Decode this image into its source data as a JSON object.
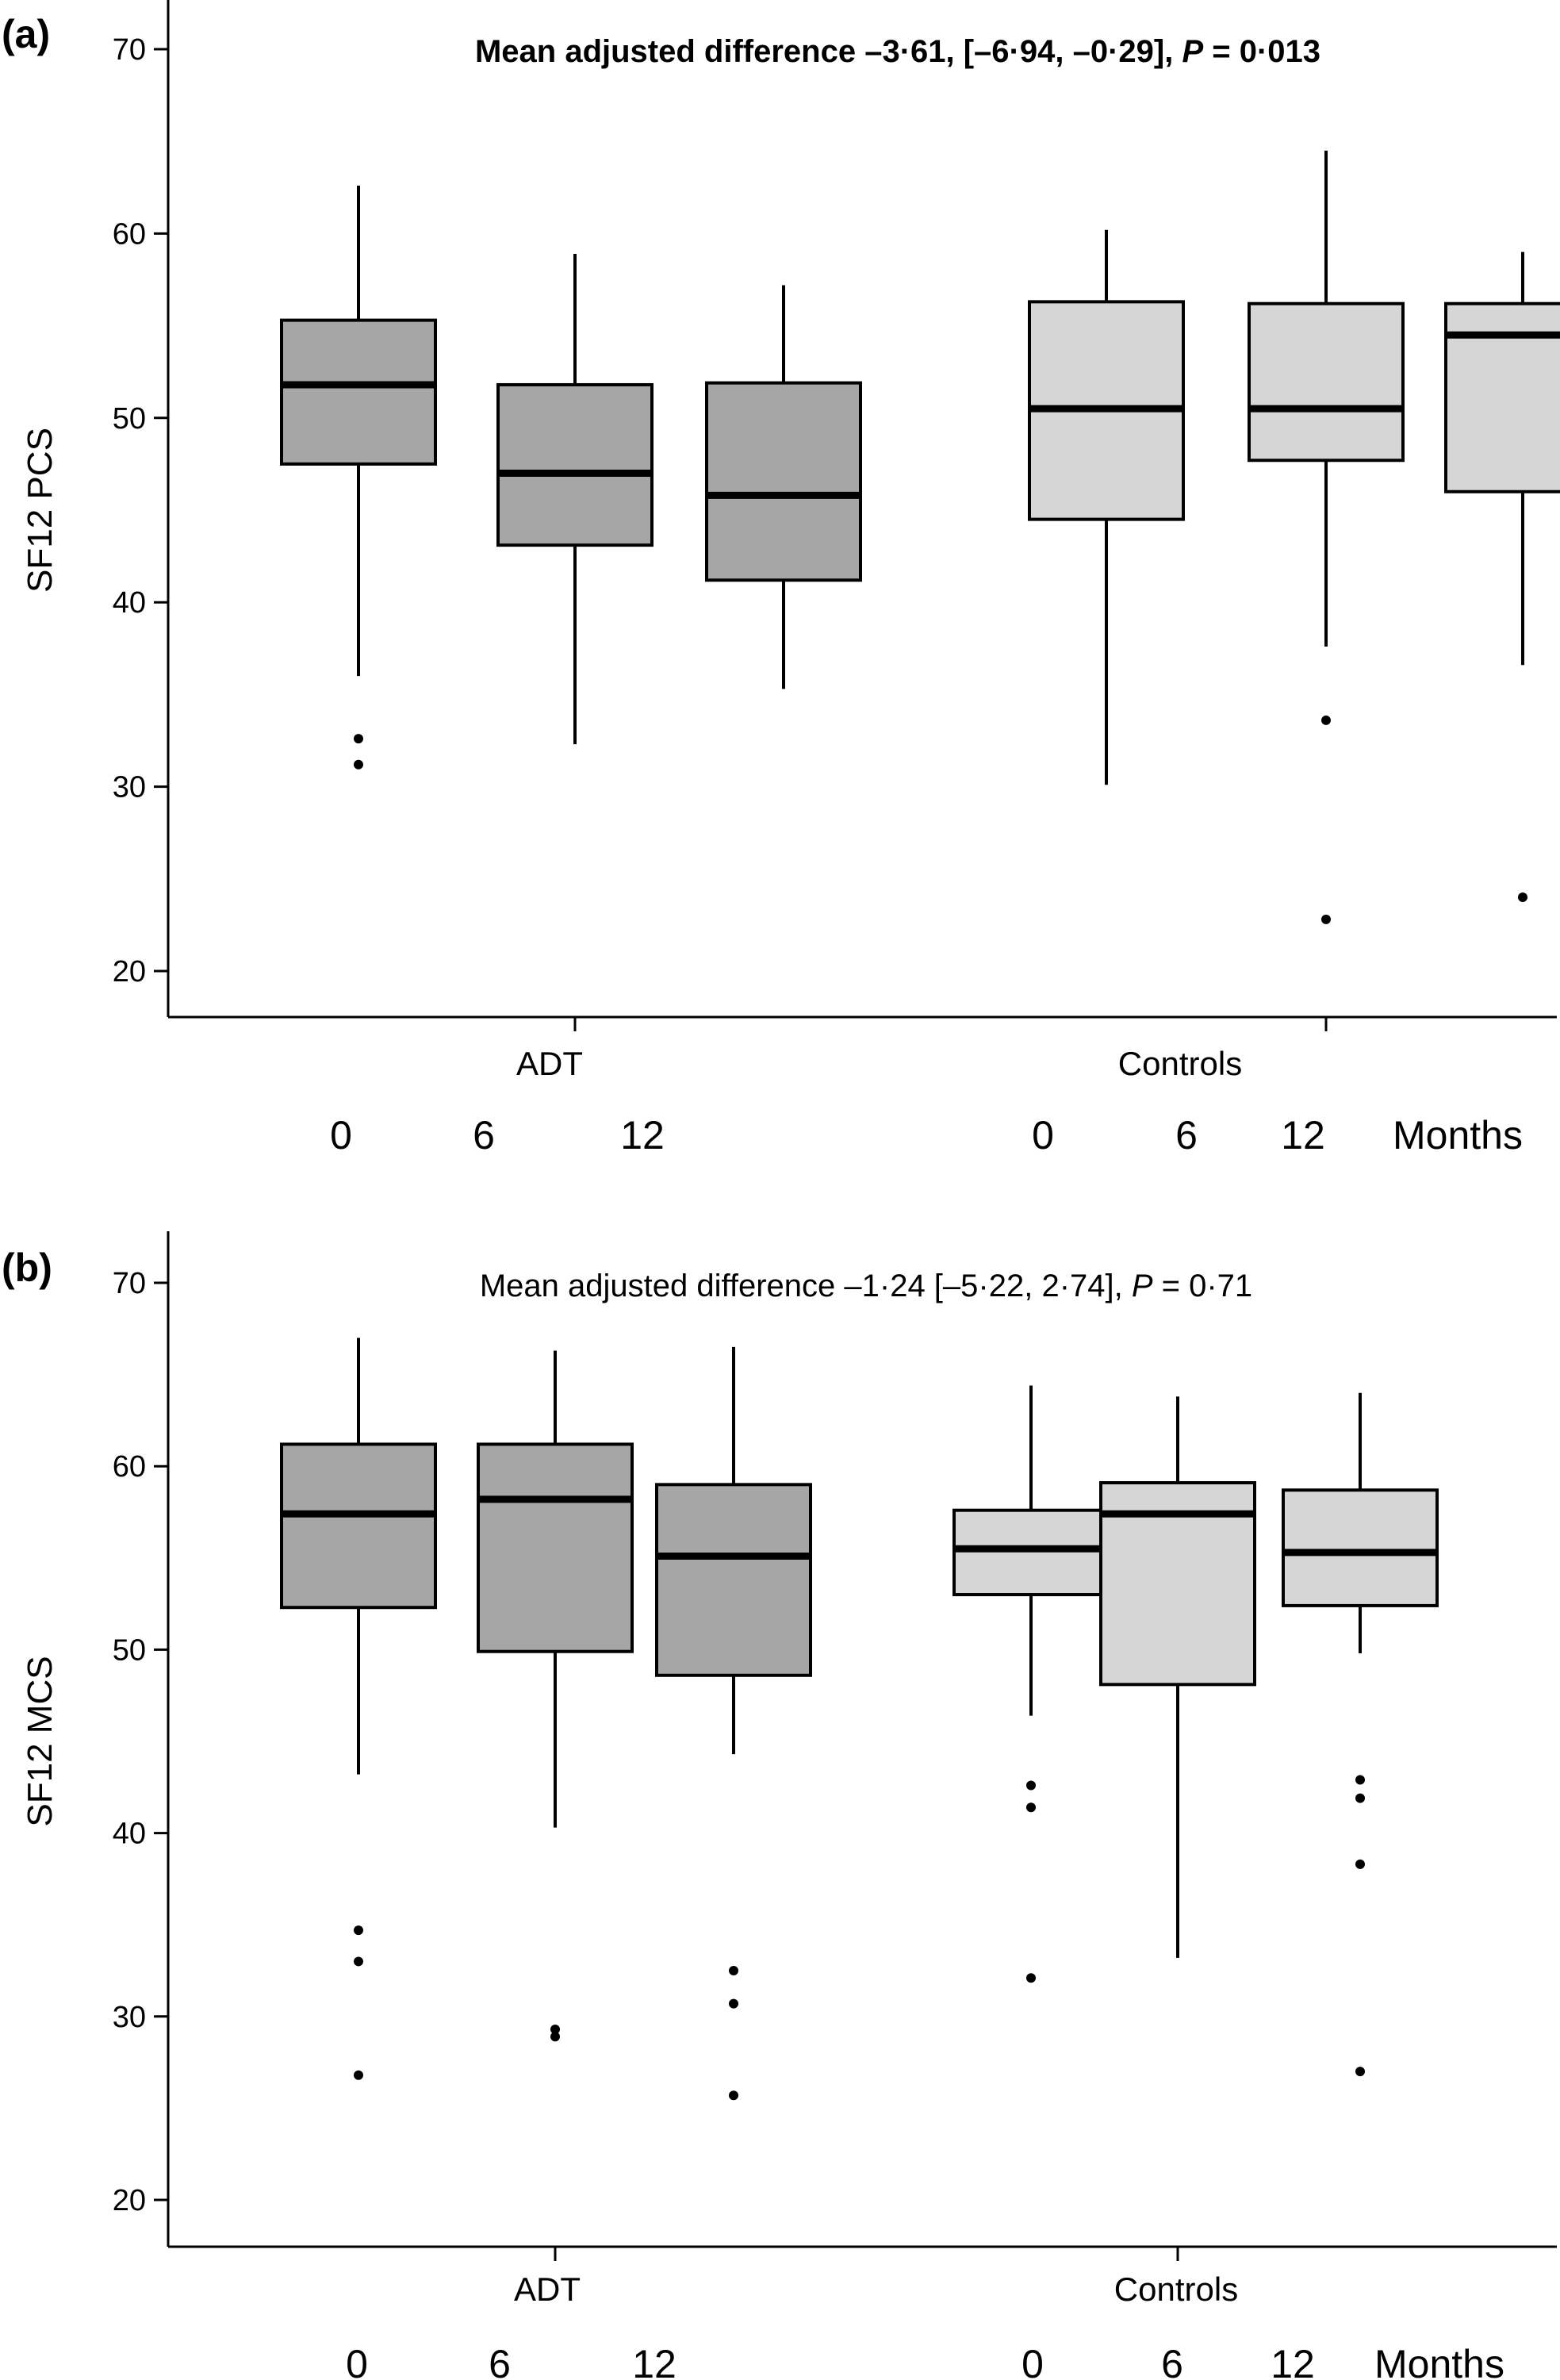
{
  "colors": {
    "adt": "#a6a6a6",
    "controls": "#d6d6d6",
    "stroke": "#000000"
  },
  "chart_data": [
    {
      "type": "boxplot",
      "panel_label": "(a)",
      "title_parts": [
        {
          "text": "Mean adjusted difference –3·61, [–6·94, –0·29], ",
          "italic": false
        },
        {
          "text": "P",
          "italic": true
        },
        {
          "text": " = 0·013",
          "italic": false
        }
      ],
      "title_bold": true,
      "ylabel": "SF12 PCS",
      "ylim": [
        17.5,
        72.5
      ],
      "yticks": [
        20,
        30,
        40,
        50,
        60,
        70
      ],
      "groups": [
        "ADT",
        "Controls"
      ],
      "months": [
        "0",
        "6",
        "12"
      ],
      "months_label": "Months",
      "series": [
        {
          "group": "ADT",
          "month": "0",
          "whisker_low": 36.0,
          "q1": 47.5,
          "median": 51.8,
          "q3": 55.3,
          "whisker_high": 62.6,
          "outliers": [
            32.6,
            31.2
          ]
        },
        {
          "group": "ADT",
          "month": "6",
          "whisker_low": 32.3,
          "q1": 43.1,
          "median": 47.0,
          "q3": 51.8,
          "whisker_high": 58.9,
          "outliers": []
        },
        {
          "group": "ADT",
          "month": "12",
          "whisker_low": 35.3,
          "q1": 41.2,
          "median": 45.8,
          "q3": 51.9,
          "whisker_high": 57.2,
          "outliers": []
        },
        {
          "group": "Controls",
          "month": "0",
          "whisker_low": 30.1,
          "q1": 44.5,
          "median": 50.5,
          "q3": 56.3,
          "whisker_high": 60.2,
          "outliers": []
        },
        {
          "group": "Controls",
          "month": "6",
          "whisker_low": 37.6,
          "q1": 47.7,
          "median": 50.5,
          "q3": 56.2,
          "whisker_high": 64.5,
          "outliers": [
            33.6,
            22.8
          ]
        },
        {
          "group": "Controls",
          "month": "12",
          "whisker_low": 36.6,
          "q1": 46.0,
          "median": 54.5,
          "q3": 56.2,
          "whisker_high": 59.0,
          "outliers": [
            24.0
          ]
        }
      ]
    },
    {
      "type": "boxplot",
      "panel_label": "(b)",
      "title_parts": [
        {
          "text": "Mean adjusted difference –1·24 [–5·22, 2·74], ",
          "italic": false
        },
        {
          "text": "P",
          "italic": true
        },
        {
          "text": " = 0·71",
          "italic": false
        }
      ],
      "title_bold": false,
      "ylabel": "SF12 MCS",
      "ylim": [
        17.5,
        72.5
      ],
      "yticks": [
        20,
        30,
        40,
        50,
        60,
        70
      ],
      "groups": [
        "ADT",
        "Controls"
      ],
      "months": [
        "0",
        "6",
        "12"
      ],
      "months_label": "Months",
      "series": [
        {
          "group": "ADT",
          "month": "0",
          "whisker_low": 43.2,
          "q1": 52.3,
          "median": 57.4,
          "q3": 61.2,
          "whisker_high": 67.0,
          "outliers": [
            34.7,
            33.0,
            26.8
          ]
        },
        {
          "group": "ADT",
          "month": "6",
          "whisker_low": 40.3,
          "q1": 49.9,
          "median": 58.2,
          "q3": 61.2,
          "whisker_high": 66.3,
          "outliers": [
            29.3,
            28.9
          ]
        },
        {
          "group": "ADT",
          "month": "12",
          "whisker_low": 44.3,
          "q1": 48.6,
          "median": 55.1,
          "q3": 59.0,
          "whisker_high": 66.5,
          "outliers": [
            32.5,
            30.7,
            25.7
          ]
        },
        {
          "group": "Controls",
          "month": "0",
          "whisker_low": 46.4,
          "q1": 53.0,
          "median": 55.5,
          "q3": 57.6,
          "whisker_high": 64.4,
          "outliers": [
            42.6,
            41.4,
            32.1
          ]
        },
        {
          "group": "Controls",
          "month": "6",
          "whisker_low": 33.2,
          "q1": 48.1,
          "median": 57.4,
          "q3": 59.1,
          "whisker_high": 63.8,
          "outliers": []
        },
        {
          "group": "Controls",
          "month": "12",
          "whisker_low": 49.8,
          "q1": 52.4,
          "median": 55.3,
          "q3": 58.7,
          "whisker_high": 64.0,
          "outliers": [
            42.9,
            41.9,
            38.3,
            27.0
          ]
        }
      ]
    }
  ]
}
